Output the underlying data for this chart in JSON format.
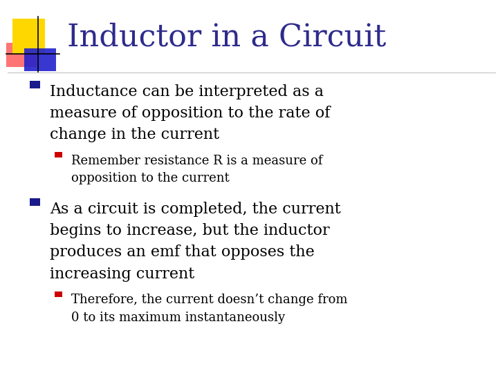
{
  "title": "Inductor in a Circuit",
  "title_color": "#2E2B8C",
  "title_fontsize": 32,
  "bg_color": "#FFFFFF",
  "bullet1_line1": "Inductance can be interpreted as a",
  "bullet1_line2": "measure of opposition to the rate of",
  "bullet1_line3": "change in the current",
  "sub_bullet1_line1": "Remember resistance R is a measure of",
  "sub_bullet1_line2": "opposition to the current",
  "bullet2_line1": "As a circuit is completed, the current",
  "bullet2_line2": "begins to increase, but the inductor",
  "bullet2_line3": "produces an emf that opposes the",
  "bullet2_line4": "increasing current",
  "sub_bullet2_line1": "Therefore, the current doesn’t change from",
  "sub_bullet2_line2": "0 to its maximum instantaneously",
  "bullet_marker_color": "#1A1A8C",
  "sub_bullet_marker_color": "#CC0000",
  "text_color": "#000000",
  "bullet_fontsize": 16,
  "sub_bullet_fontsize": 13,
  "logo_yellow": "#FFD700",
  "logo_blue": "#2222CC",
  "logo_red": "#FF6666",
  "separator_color": "#BBBBBB"
}
